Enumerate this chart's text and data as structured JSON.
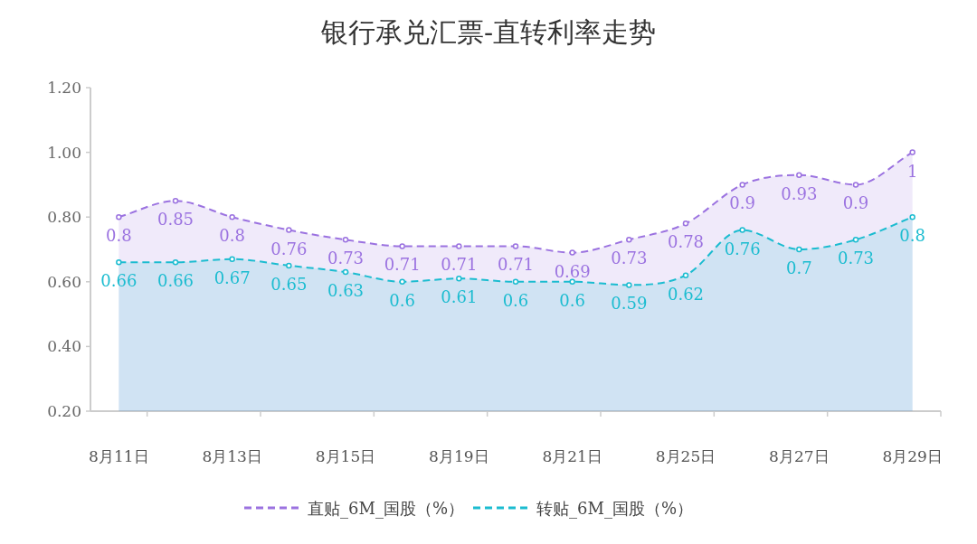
{
  "chart_data": {
    "type": "area",
    "title": "银行承兑汇票-直转利率走势",
    "categories": [
      "8月11日",
      null,
      "8月13日",
      null,
      "8月15日",
      null,
      "8月19日",
      null,
      "8月21日",
      null,
      "8月25日",
      null,
      "8月27日",
      null,
      "8月29日"
    ],
    "series": [
      {
        "name": "直贴_6M_国股（%）",
        "color": "#9b72e0",
        "values": [
          0.8,
          0.85,
          0.8,
          0.76,
          0.73,
          0.71,
          0.71,
          0.71,
          0.69,
          0.73,
          0.78,
          0.9,
          0.93,
          0.9,
          1
        ]
      },
      {
        "name": "转贴_6M_国股（%）",
        "color": "#1bbcd0",
        "values": [
          0.66,
          0.66,
          0.67,
          0.65,
          0.63,
          0.6,
          0.61,
          0.6,
          0.6,
          0.59,
          0.62,
          0.76,
          0.7,
          0.73,
          0.8
        ]
      }
    ],
    "ylim": [
      0.2,
      1.2
    ],
    "yticks": [
      {
        "value": 0.2,
        "label": "0.20"
      },
      {
        "value": 0.4,
        "label": "0.40"
      },
      {
        "value": 0.6,
        "label": "0.60"
      },
      {
        "value": 0.8,
        "label": "0.80"
      },
      {
        "value": 1.0,
        "label": "1.00"
      },
      {
        "value": 1.2,
        "label": "1.20"
      }
    ],
    "data_labels": true,
    "legend": "bottom",
    "marker": "circle",
    "line_style": "dashed",
    "grid": false
  }
}
